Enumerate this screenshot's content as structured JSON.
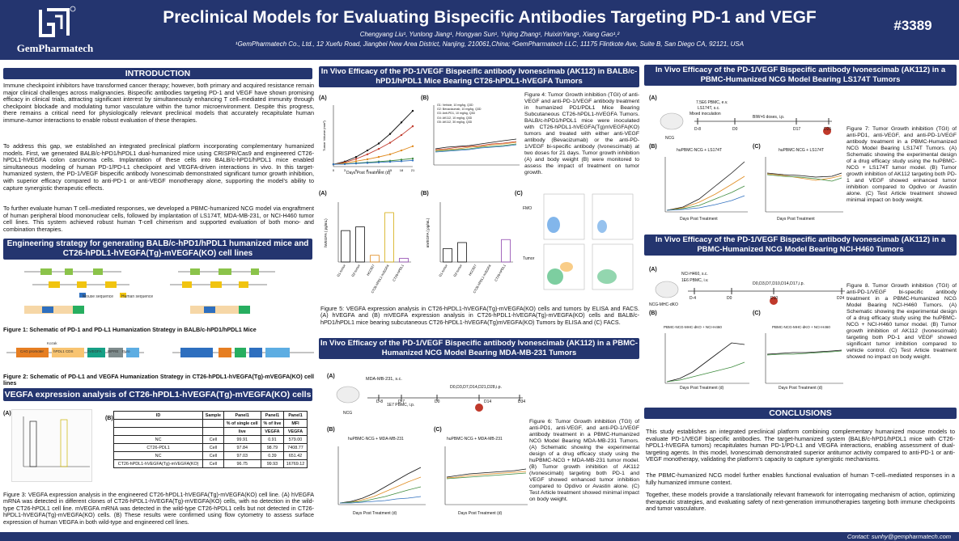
{
  "header": {
    "brand": "GemPharmatech",
    "title": "Preclinical Models for Evaluating Bispecific Antibodies Targeting PD-1 and VEGF",
    "authors": "Chengyang Liu¹, Yunlong Jiang¹, Hongyan Sun¹, Yujing Zhang¹, HuixinYang¹, Xiang Gao¹,²",
    "affiliations": "¹GemPharmatech Co., Ltd., 12 Xuefu Road, Jiangbei New Area District, Nanjing, 210061,China; ²GemPharmatech LLC, 11175 Flintkote Ave, Suite B, San Diego CA, 92121, USA",
    "poster_number": "#3389"
  },
  "intro": {
    "heading": "INTRODUCTION",
    "p1": "Immune checkpoint inhibitors have transformed cancer therapy; however, both primary and acquired resistance remain major clinical challenges across malignancies. Bispecific antibodies targeting PD-1 and VEGF have shown promising efficacy in clinical trials, attracting significant interest by simultaneously enhancing T cell–mediated immunity through checkpoint blockade and modulating tumor vasculature within the tumor microenvironment. Despite this progress, there remains a critical need for physiologically relevant preclinical models that accurately recapitulate human immune–tumor interactions to enable robust evaluation of these therapies.",
    "p2": "To address this gap, we established an integrated preclinical platform incorporating complementary humanized models. First, we generated BALB/c-hPD1/hPDL1 dual-humanized mice using CRISPR/Cas9 and engineered CT26-hPDL1-hVEGFA colon carcinoma cells. Implantation of these cells into BALB/c-hPD1/hPDL1 mice enabled simultaneous modeling of human PD-1/PD-L1 checkpoint and VEGFA-driven interactions in vivo. In this target-humanized system, the PD-1/VEGF bispecific antibody Ivonescimab demonstrated significant tumor growth inhibition, with superior efficacy compared to anti-PD-1 or anti-VEGF monotherapy alone, supporting the model's ability to capture synergistic therapeutic effects.",
    "p3": "To further evaluate human T cell–mediated responses, we developed a PBMC-humanized NCG model via engraftment of human peripheral blood mononuclear cells, followed by implantation of LS174T, MDA-MB-231, or NCI-H460 tumor cell lines. This system achieved robust human T-cell chimerism and supported evaluation of both mono- and combination therapies."
  },
  "engineering": {
    "heading": "Engineering strategy for generating BALB/c-hPD1/hPDL1 humanized mice and CT26-hPDL1-hVEGFA(Tg)-mVEGFA(KO) cell lines",
    "legend_mouse": "Mouse sequence",
    "legend_human": "Human sequence",
    "fig1": "Figure 1: Schematic of PD-1 and PD-L1 Humanization Strategy in BALB/c-hPD1/hPDL1 Mice",
    "fig2": "Figure 2: Schematic of PD-L1 and VEGFA Humanization Strategy in CT26-hPDL1-hVEGFA(Tg)-mVEGFA(KO) cell lines",
    "construct_labels": [
      "CAG promoter",
      "hPDL1 CDS",
      "Kozak",
      "hVEGFA",
      "WPRE",
      "Puro"
    ]
  },
  "vegfa_expr": {
    "heading": "VEGFA expression analysis of CT26-hPDL1-hVEGFA(Tg)-mVEGFA(KO) cells",
    "panel_a": "(A)",
    "panel_b": "(B)",
    "table": {
      "header1": [
        "ID",
        "Sample",
        "Panel1",
        "Panel1",
        "Panel1"
      ],
      "header2": [
        "",
        "",
        "% of single cell",
        "% of live",
        "MFI"
      ],
      "header3": [
        "",
        "",
        "live",
        "VEGFA",
        "VEGFA"
      ],
      "rows": [
        [
          "NC",
          "Cell",
          "99.91",
          "0.91",
          "579.00"
        ],
        [
          "CT26-PDL1",
          "Cell",
          "97.84",
          "98.79",
          "7408.77"
        ],
        [
          "NC",
          "Cell",
          "97.03",
          "0.39",
          "651.42"
        ],
        [
          "CT26-hPDL1-hVEGFA(Tg)-mVEGFA(KO)",
          "Cell",
          "96.75",
          "99.93",
          "16769.12"
        ]
      ]
    },
    "fig3": "Figure 3: VEGFA expression analysis in the engineered CT26-hPDL1-hVEGFA(Tg)-mVEGFA(KO) cell line. (A) hVEGFA mRNA was detected in different clones of CT26-hPDL1-hVEGFA(Tg)-mVEGFA(KO) cells, with no detection in the wild-type CT26-hPDL1 cell line. mVEGFA mRNA was detected in the wild-type CT26-hPDL1 cells but not detected in CT26-hPDL1-hVEGFA(Tg)-mVEGFA(KO) cells. (B) These results were confirmed using flow cytometry to assess surface expression of human VEGFA in both wild-type and engineered cell lines."
  },
  "balbc": {
    "heading": "In Vivo Efficacy of the PD-1/VEGF Bispecific antibody Ivonescimab (AK112) in BALB/c-hPD1/hPDL1 Mice Bearing CT26-hPDL1-hVEGFA Tumors",
    "panel_a": "(A)",
    "panel_b": "(B)",
    "panel_c": "(C)",
    "xlabel": "Days Post Treatment (d)",
    "ylabel_tv": "Tumor Volume (mm³)",
    "ylabel_bw": "Body Weight (g)",
    "ylabel_h": "hVEGFA ( pg/mL)",
    "ylabel_m": "mVEGFA ( pg/mL)",
    "legend": [
      "G1: Vehicle, 10 mg/kg, Q3D",
      "G2: Bevacizumab, 10 mg/kg, Q3D",
      "G3: Anti-PD1, 10 mg/kg, Q3D",
      "G4: AK112, 10 mg/kg, Q3D",
      "G5: AK112, 30 mg/kg, Q3D"
    ],
    "facs_labels": [
      "FMO",
      "Tumor"
    ],
    "fig4": "Figure 4: Tumor Growth inhibition (TGI) of anti-VEGF and anti-PD-1/VEGF antibody treatment in humanized PD1/PDL1 Mice Bearing Subcutaneous CT26-hPDL1-hVEGFA Tumors. BALB/c-hPD1/hPDL1 mice were inoculated with CT26-hPDL1-hVEGFA(Tg)mVEGFA(KO) tumors and treated with either anti-VEGF antibody (Bevacizumab) or the anti-PD-1/VEGF bi-specific antibody (Ivonescimab) at two doses for 21 days. Tumor growth inhibition (A) and body weight (B) were monitored to assess the impact of treatment on tumor growth.",
    "fig5": "Figure 5: VEGFA expression analysis in CT26-hPDL1-hVEGFA(Tg)-mVEGFA(KO) cells and tumors by ELISA and FACS. (A) hVEGFA and (B) mVEGFA expression analysis in CT26-hPDL1-hVEGFA(Tg)-mVEGFA(KO) cells and BALB/c-hPD1/hPDL1 mice bearing subcutaneous CT26-hPDL1-hVEGFA(Tg)mVEGFA(KO) Tumors by ELISA and (C) FACS."
  },
  "mda": {
    "heading": "In Vivo Efficacy of the PD-1/VEGF Bispecific antibody Ivonescimab (AK112) in a PBMC-Humanized NCG Model Bearing MDA-MB-231 Tumors",
    "panel_a": "(A)",
    "panel_b": "(B)",
    "panel_c": "(C)",
    "sched_cells": "MDA-MB-231, s.c.",
    "sched_pbmc": "1E7 PBMC, i.p.",
    "sched_dosing": "D0,D3,D7,D14,D21,D28,i.p.",
    "sched_days": [
      "D-8",
      "D-7",
      "D0",
      "D14",
      "D34"
    ],
    "mouse_label": "NCG",
    "chart_title_tv": "huPBMC-NCG + MDA-MB-231",
    "chart_title_bw": "huPBMC-NCG + MDA-MB-231",
    "xlabel": "Days Post Treatment (d)",
    "ylabel_tv": "Tumor Volume (mm³)",
    "ylabel_bw": "Body Weight (g)",
    "fig6": "Figure 6: Tumor Growth inhibition (TGI) of anti-PD1, anti-VEGF, and anti-PD-1/VEGF antibody treatment in a PBMC-Humanized NCG Model Bearing MDA-MB-231 Tumors. (A) Schematic showing the experimental design of a drug efficacy study using the huPBMC-NCG + MDA-MB-231 tumor model. (B) Tumor growth inhibition of AK112 (Ivonescimab) targeting both PD-1 and VEGF showed enhanced tumor inhibition compared to Opdivo or Avastin alone. (C) Test Article treatment showed minimal impact on body weight."
  },
  "ls174t": {
    "heading": "In Vivo Efficacy of the PD-1/VEGF Bispecific antibody Ivonescimab (AK112) in a PBMC-Humanized NCG Model Bearing LS174T Tumors",
    "panel_a": "(A)",
    "panel_b": "(B)",
    "panel_c": "(C)",
    "sched_pbmc": "7.5E6 PBMC, e.v.",
    "sched_cells": "LS174T, s.c.",
    "sched_mixed": "Mixed inoculation",
    "sched_dosing": "BIW×6 doses, i.p.",
    "sched_days": [
      "D-8",
      "D0",
      "D17",
      "D25"
    ],
    "mouse_label": "NCG",
    "chart_title_tv": "huPBMC-NCG + LS174T",
    "chart_title_bw": "huPBMC-NCG + LS174T",
    "xlabel": "Days Post Treatment",
    "ylabel_tv": "Tumor Volume (mm³)",
    "ylabel_bw": "Body Weight (g)",
    "fig7": "Figure 7: Tumor Growth inhibition (TGI) of anti-PD1, anti-VEGF, and anti-PD-1/VEGF antibody treatment in a PBMC-Humanized NCG Model Bearing LS174T Tumors. (A) Schematic showing the experimental design of a drug efficacy study using the huPBMC-NCG + LS174T tumor model. (B) Tumor growth inhibition of AK112 targeting both PD-1 and VEGF showed enhanced tumor inhibition compared to Opdivo or Avastin alone. (C) Test Article treatment showed minimal impact on body weight."
  },
  "h460": {
    "heading": "In Vivo Efficacy of the PD-1/VEGF Bispecific antibody Ivonescimab (AK112) in a PBMC-Humanized NCG Model Bearing NCI-H460 Tumors",
    "panel_a": "(A)",
    "panel_b": "(B)",
    "panel_c": "(C)",
    "sched_cells": "NCI-H460, s.c.",
    "sched_pbmc": "1E6 PBMC, i.v.",
    "sched_dosing": "D0,D3,D7,D10,D14,D17,i.p.",
    "sched_days": [
      "D-4",
      "D0",
      "D10",
      "D24"
    ],
    "mouse_label": "NCG-MHC-dKO",
    "chart_title_tv": "PBMC-NCG-MHC-dKO + NCI-H460",
    "chart_title_bw": "PBMC-NCG-MHC-dKO + NCI-H460",
    "xlabel": "Days Post Treatment (d)",
    "ylabel_tv": "Tumor Volume (mm³)",
    "ylabel_bw": "Body Weight (g)",
    "fig8": "Figure 8. Tumor Growth inhibition (TGI) of anti-PD-1/VEGF bi-specific antibody treatment in a PBMC-Humanized NCG Model Bearing NCI-H460 Tumors. (A) Schematic showing the experimental design of a drug efficacy study using the huPBMC-NCG + NCI-H460 tumor model. (B) Tumor growth inhibition of AK112 (Ivonescimab) targeting both PD-1 and VEGF showed significant tumor inhibition compared to vehicle control. (C) Test Article treatment showed no impact on body weight."
  },
  "conclusions": {
    "heading": "CONCLUSIONS",
    "p1": "This study establishes an integrated preclinical platform combining complementary humanized mouse models to evaluate PD-1/VEGF bispecific antibodies. The target-humanized system (BALB/c-hPD1/hPDL1 mice with CT26-hPDL1-hVEGFA tumors) recapitulates human PD-1/PD-L1 and VEGFA interactions, enabling assessment of dual-targeting agents. In this model, Ivonescimab demonstrated superior antitumor activity compared to anti-PD-1 or anti-VEGF monotherapy, validating the platform's capacity to capture synergistic mechanisms.",
    "p2": "The PBMC-humanized NCG model further enables functional evaluation of human T-cell–mediated responses in a fully humanized immune context.",
    "p3": "Together, these models provide a translationally relevant framework for interrogating mechanism of action, optimizing therapeutic strategies, and evaluating safety of next-generation immunotherapies targeting both immune checkpoints and tumor vasculature."
  },
  "footer": {
    "contact": "Contact: sunhy@gempharmatech.com"
  },
  "colors": {
    "navy": "#24356f",
    "red": "#c0392b",
    "green": "#3d8b3d",
    "orange": "#e08a1e",
    "blue": "#2e6fbf",
    "purple": "#8e44ad",
    "black": "#111111"
  },
  "chart_data": [
    {
      "type": "line",
      "title": "",
      "xlabel": "Days Post Treatment (d)",
      "ylabel": "Tumor Volume (mm³)",
      "x": [
        0,
        3,
        6,
        9,
        12,
        15,
        18,
        21
      ],
      "ylim": [
        0,
        1600
      ],
      "series": [
        {
          "name": "G1: Vehicle, 10 mg/kg, Q3D",
          "values": [
            60,
            130,
            250,
            420,
            600,
            850,
            1150,
            1450
          ]
        },
        {
          "name": "G2: Bevacizumab, 10 mg/kg, Q3D",
          "values": [
            60,
            110,
            200,
            320,
            460,
            620,
            820,
            1050
          ]
        },
        {
          "name": "G3: Anti-PD1, 10 mg/kg, Q3D",
          "values": [
            60,
            90,
            140,
            190,
            250,
            320,
            420,
            530
          ]
        },
        {
          "name": "G4: AK112, 10 mg/kg, Q3D",
          "values": [
            60,
            70,
            90,
            110,
            130,
            150,
            180,
            210
          ]
        },
        {
          "name": "G5: AK112, 30 mg/kg, Q3D",
          "values": [
            60,
            65,
            80,
            95,
            110,
            125,
            140,
            160
          ]
        }
      ]
    },
    {
      "type": "bar",
      "title": "",
      "ylabel": "hVEGFA ( pg/mL)",
      "categories": [
        "G1-tumor",
        "G2-tumor",
        "HCC827",
        "CT26-hPDL1-hVEGFA",
        "CT26-hPDL1"
      ],
      "values": [
        4200,
        4700,
        900,
        6600,
        500
      ],
      "ylim": [
        0,
        8000
      ]
    },
    {
      "type": "bar",
      "title": "",
      "ylabel": "mVEGFA ( pg/mL)",
      "categories": [
        "G1-tumor",
        "G2-tumor",
        "HCC827",
        "CT26-hPDL1-hVEGFA",
        "CT26-hPDL1"
      ],
      "values": [
        450,
        650,
        0,
        0,
        750
      ],
      "ylim": [
        0,
        2000
      ]
    }
  ]
}
